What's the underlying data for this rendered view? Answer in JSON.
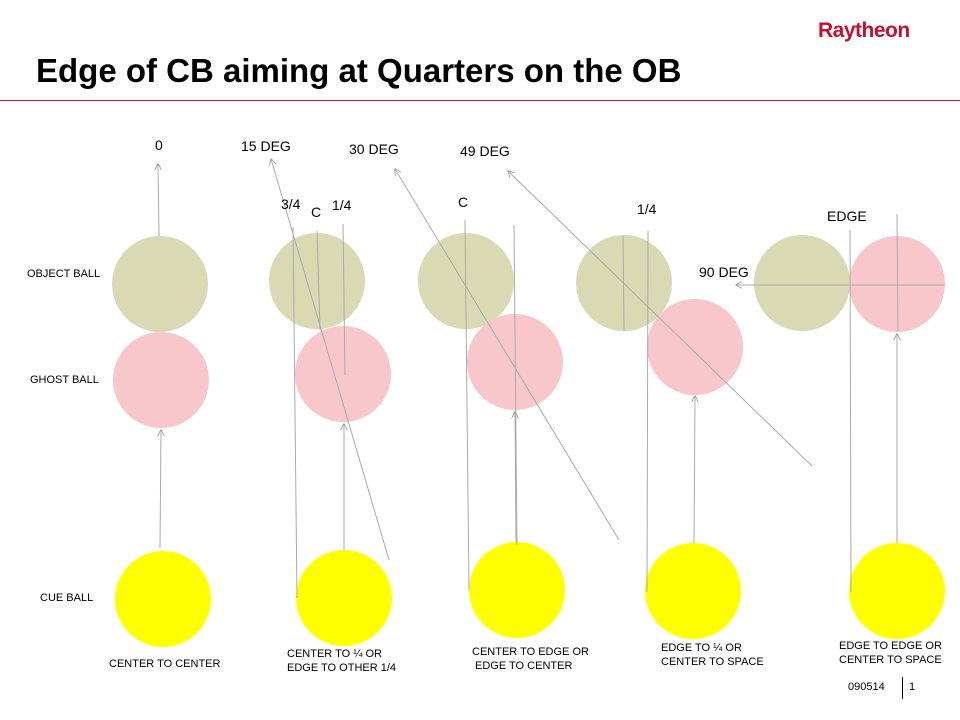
{
  "header": {
    "logo": "Raytheon",
    "title": "Edge of CB aiming at Quarters on the OB"
  },
  "row_labels": {
    "object_ball": "OBJECT BALL",
    "ghost_ball": "GHOST BALL",
    "cue_ball": "CUE BALL"
  },
  "angles": {
    "a0": "0",
    "a15": "15 DEG",
    "a30": "30 DEG",
    "a49": "49 DEG",
    "a90": "90 DEG"
  },
  "markers": {
    "three_quarter": "3/4",
    "center_1": "C",
    "quarter_1": "1/4",
    "center_2": "C",
    "quarter_2": "1/4",
    "edge": "EDGE"
  },
  "captions": {
    "c1_line1": "CENTER TO CENTER",
    "c2_line1": "CENTER TO ¼ OR",
    "c2_line2": "EDGE TO OTHER 1/4",
    "c3_line1": "CENTER TO EDGE OR",
    "c3_line2": "EDGE TO CENTER",
    "c4_line1": "EDGE TO ¼ OR",
    "c4_line2": "CENTER TO SPACE",
    "c5_line1": "EDGE TO EDGE OR",
    "c5_line2": "CENTER TO SPACE"
  },
  "footer": {
    "code": "090514",
    "page": "1"
  },
  "colors": {
    "brand_red": "#c8102e",
    "object_ball": "#d9d9b4",
    "ghost_ball": "#f8c7cc",
    "cue_ball": "#ffff00",
    "line": "#aaaaaa"
  }
}
